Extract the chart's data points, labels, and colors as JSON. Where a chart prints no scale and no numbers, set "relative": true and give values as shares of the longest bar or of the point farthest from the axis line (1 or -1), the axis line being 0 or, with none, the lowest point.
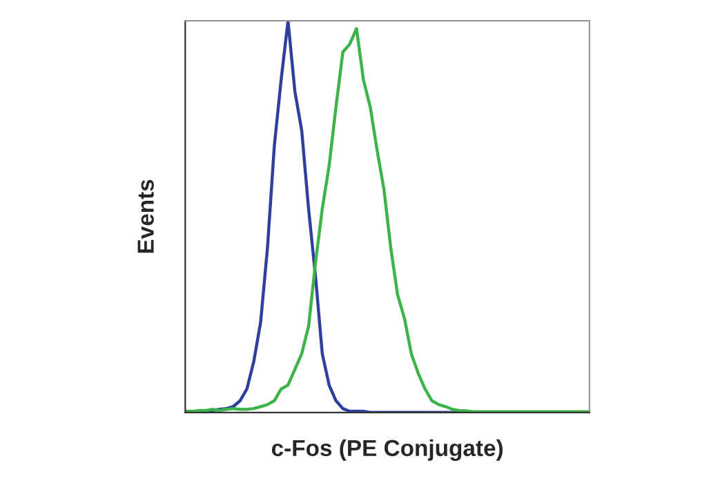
{
  "chart_data": {
    "type": "line",
    "relative": true,
    "xlabel": "c-Fos (PE Conjugate)",
    "ylabel": "Events",
    "marker": "none",
    "line_style": "solid",
    "categories": [
      null,
      null,
      null,
      null,
      null,
      null,
      null,
      null,
      null,
      null,
      null,
      null,
      null,
      null,
      null,
      null,
      null,
      null,
      null,
      null,
      null,
      null,
      null,
      null,
      null,
      null,
      null,
      null,
      null,
      null,
      null,
      null,
      null,
      null,
      null,
      null,
      null,
      null,
      null,
      null,
      null,
      null,
      null,
      null,
      null,
      null,
      null,
      null,
      null,
      null,
      null,
      null,
      null,
      null,
      null,
      null,
      null,
      null,
      null,
      null
    ],
    "series": [
      {
        "color": "#2e3f9e",
        "values": [
          null,
          null,
          0,
          0,
          0.005,
          0.008,
          0.01,
          0.015,
          0.03,
          0.06,
          0.13,
          0.23,
          0.42,
          0.68,
          0.85,
          1.0,
          0.82,
          0.72,
          0.52,
          0.35,
          0.15,
          0.07,
          0.03,
          0.01,
          0.003,
          0.003,
          0.003,
          0,
          0,
          0,
          0,
          0,
          0,
          0,
          0,
          0,
          0,
          0,
          0,
          0,
          0,
          0,
          null,
          null,
          null,
          null,
          null,
          null,
          null,
          null,
          null,
          null,
          null,
          null,
          null,
          null,
          null,
          null,
          null,
          null
        ]
      },
      {
        "color": "#3cb44a",
        "values": [
          0.003,
          0.003,
          0.005,
          0.005,
          0.008,
          0.005,
          0.008,
          0.01,
          0.008,
          0.008,
          0.01,
          0.015,
          0.02,
          0.03,
          0.06,
          0.07,
          0.11,
          0.15,
          0.22,
          0.38,
          0.52,
          0.63,
          0.78,
          0.92,
          0.94,
          0.98,
          0.85,
          0.78,
          0.67,
          0.57,
          0.42,
          0.3,
          0.24,
          0.15,
          0.1,
          0.06,
          0.03,
          0.02,
          0.015,
          0.008,
          0.005,
          0.004,
          0.002,
          0.002,
          0.002,
          0.002,
          0.002,
          0.002,
          0.002,
          0.002,
          0.002,
          0.002,
          0.002,
          0.002,
          0.002,
          0.002,
          0.002,
          0.002,
          0.002,
          0.002
        ]
      }
    ]
  }
}
